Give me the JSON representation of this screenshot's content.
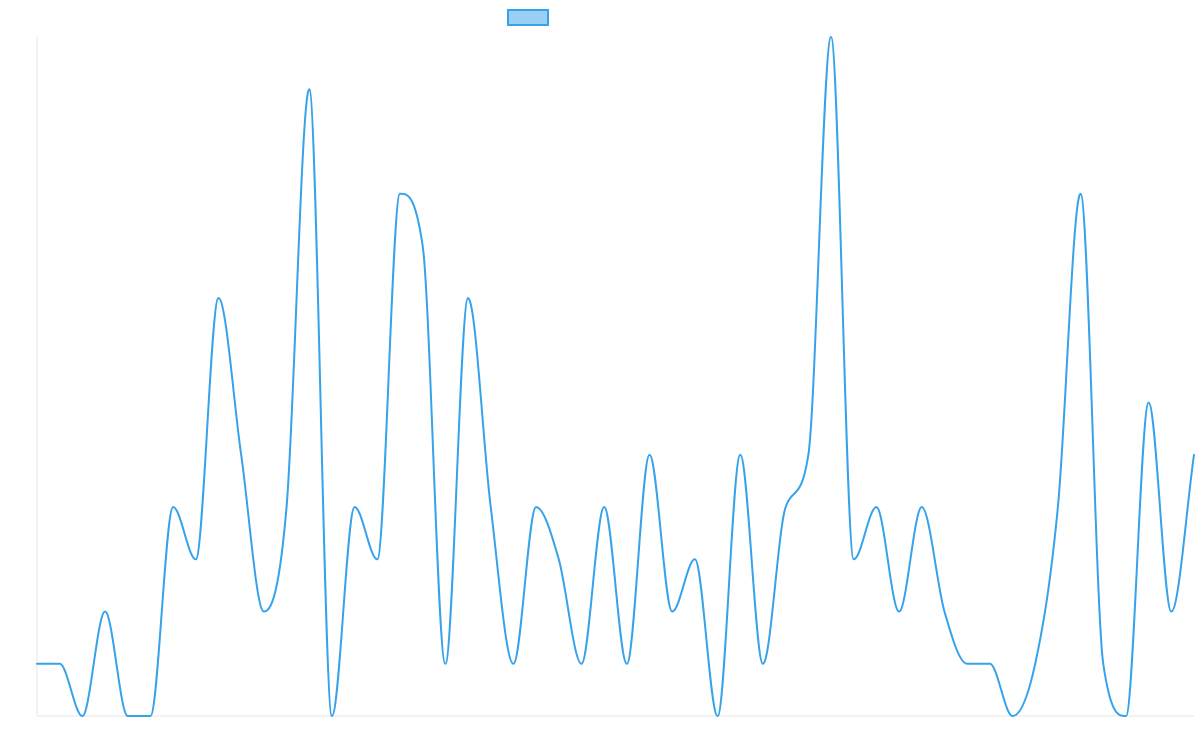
{
  "colors": {
    "series_line": "#36a2eb",
    "series_fill": "#9ad0f5",
    "axis": "#e6e6e6"
  },
  "chart_data": {
    "type": "line",
    "title": "",
    "xlabel": "",
    "ylabel": "",
    "legend": {
      "position": "top",
      "entries": [
        ""
      ]
    },
    "grid": false,
    "interpolation": "smooth",
    "ylim": [
      0,
      13
    ],
    "x": [
      0,
      1,
      2,
      3,
      4,
      5,
      6,
      7,
      8,
      9,
      10,
      11,
      12,
      13,
      14,
      15,
      16,
      17,
      18,
      19,
      20,
      21,
      22,
      23,
      24,
      25,
      26,
      27,
      28,
      29,
      30,
      31,
      32,
      33,
      34,
      35,
      36,
      37,
      38,
      39,
      40,
      41,
      42,
      43,
      44,
      45,
      46,
      47,
      48,
      49,
      50,
      51
    ],
    "series": [
      {
        "name": "",
        "values": [
          1,
          1,
          0,
          2,
          0,
          0,
          4,
          3,
          8,
          5,
          2,
          4,
          12,
          0,
          4,
          3,
          10,
          9,
          1,
          8,
          4,
          1,
          4,
          3,
          1,
          4,
          1,
          5,
          2,
          3,
          0,
          5,
          1,
          4,
          5,
          13,
          3,
          4,
          2,
          4,
          2,
          1,
          1,
          0,
          1,
          4,
          10,
          1,
          0,
          6,
          2,
          5
        ]
      }
    ]
  }
}
